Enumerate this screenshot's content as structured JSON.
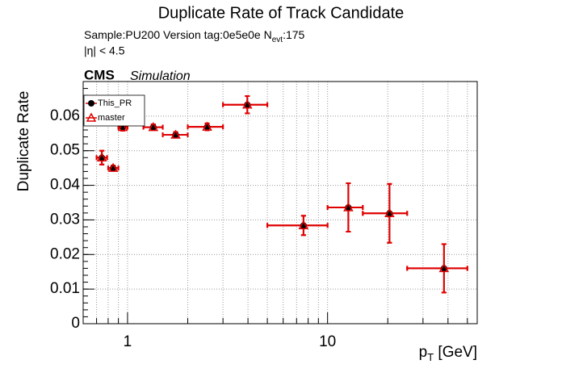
{
  "chart_data": {
    "type": "scatter",
    "title": "Duplicate Rate of Track Candidate",
    "subtitle": {
      "text": "Sample:PU200   Version tag:0e5e0e  N",
      "sub": "evt",
      "after": ":175"
    },
    "annotations": [
      "|η| < 4.5"
    ],
    "experiment": "CMS",
    "experiment_note": "Simulation",
    "ylabel": "Duplicate Rate",
    "xlabel": {
      "text": "p",
      "sub": "T",
      "after": " [GeV]"
    },
    "log_x": true,
    "grid": true,
    "legend": "upper left",
    "xlim": [
      0.6,
      56
    ],
    "ylim": [
      0,
      0.07
    ],
    "xticks": [
      1,
      10
    ],
    "yticks": [
      0,
      0.01,
      0.02,
      0.03,
      0.04,
      0.05,
      0.06
    ],
    "x": [
      0.744,
      0.847,
      0.946,
      1.345,
      1.74,
      2.5,
      3.97,
      7.58,
      12.7,
      20.4,
      38.2
    ],
    "x_low": [
      0.7,
      0.8,
      0.9,
      1.2,
      1.5,
      2,
      3,
      5,
      10,
      15,
      25
    ],
    "x_high": [
      0.79,
      0.9,
      1.0,
      1.5,
      2,
      3,
      5,
      10,
      15,
      25,
      50
    ],
    "series": [
      {
        "name": "This_PR",
        "color": "#000000",
        "values": [
          0.048,
          0.045,
          0.0568,
          0.0568,
          0.0546,
          0.0569,
          0.0633,
          0.0284,
          0.0336,
          0.0319,
          0.016
        ],
        "errors": [
          0.002,
          0.0007,
          0.001,
          0.0008,
          0.0008,
          0.001,
          0.0025,
          0.0028,
          0.007,
          0.0085,
          0.007
        ]
      },
      {
        "name": "master",
        "color": "#e00000",
        "values": [
          0.048,
          0.045,
          0.0568,
          0.0568,
          0.0546,
          0.0569,
          0.0633,
          0.0284,
          0.0336,
          0.0319,
          0.016
        ],
        "errors": [
          0.002,
          0.0007,
          0.001,
          0.0008,
          0.0008,
          0.001,
          0.0025,
          0.0028,
          0.007,
          0.0085,
          0.007
        ]
      }
    ]
  }
}
